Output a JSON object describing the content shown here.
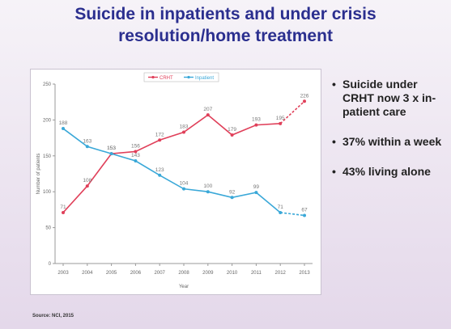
{
  "slide": {
    "title_line1": "Suicide in inpatients and under crisis",
    "title_line2": "resolution/home treatment",
    "bullets": [
      "Suicide under CRHT now 3 x in-patient care",
      "37% within a week",
      "43% living alone"
    ],
    "source": "Source: NCI, 2015"
  },
  "chart_data": {
    "type": "line",
    "xlabel": "Year",
    "ylabel": "Number of patients",
    "categories": [
      "2003",
      "2004",
      "2005",
      "2006",
      "2007",
      "2008",
      "2009",
      "2010",
      "2011",
      "2012",
      "2013"
    ],
    "ylim": [
      0,
      250
    ],
    "yticks": [
      0,
      50,
      100,
      150,
      200,
      250
    ],
    "legend_position": "top",
    "series": [
      {
        "name": "CRHT",
        "color": "#e0405a",
        "values": [
          71,
          108,
          153,
          156,
          172,
          183,
          207,
          179,
          193,
          195,
          226
        ],
        "labels": [
          "71",
          "108",
          "153",
          "156",
          "172",
          "183",
          "207",
          "179",
          "193",
          "195",
          "226"
        ],
        "projected_from_index": 9
      },
      {
        "name": "Inpatient",
        "color": "#3aa8d8",
        "values": [
          188,
          163,
          153,
          143,
          123,
          104,
          100,
          92,
          99,
          71,
          67
        ],
        "labels": [
          "188",
          "163",
          "153",
          "143",
          "123",
          "104",
          "100",
          "92",
          "99",
          "71",
          "67"
        ],
        "projected_from_index": 9
      }
    ]
  }
}
